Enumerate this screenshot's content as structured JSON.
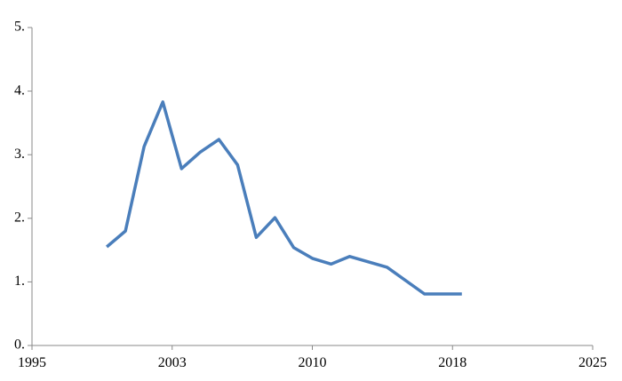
{
  "chart_data": {
    "type": "line",
    "x": [
      1999,
      2000,
      2001,
      2002,
      2003,
      2004,
      2005,
      2006,
      2007,
      2008,
      2009,
      2010,
      2011,
      2012,
      2014,
      2016,
      2018
    ],
    "series": [
      {
        "color": "#4a7ebb",
        "values": [
          1.55,
          1.8,
          3.13,
          3.83,
          2.78,
          3.04,
          3.24,
          2.84,
          1.7,
          2.01,
          1.54,
          1.37,
          1.28,
          1.4,
          1.23,
          0.81,
          0.81
        ]
      }
    ],
    "xlim": [
      1995,
      2025
    ],
    "xticks": [
      1995,
      {
        "value": 2002.5,
        "label": "2003"
      },
      2010,
      {
        "value": 2017.5,
        "label": "2018"
      },
      2025
    ],
    "ylim": [
      0,
      5
    ],
    "yticks": [
      {
        "value": 0,
        "label": "0."
      },
      {
        "value": 1,
        "label": "1."
      },
      {
        "value": 2,
        "label": "2."
      },
      {
        "value": 3,
        "label": "3."
      },
      {
        "value": 4,
        "label": "4."
      },
      {
        "value": 5,
        "label": "5."
      }
    ]
  }
}
